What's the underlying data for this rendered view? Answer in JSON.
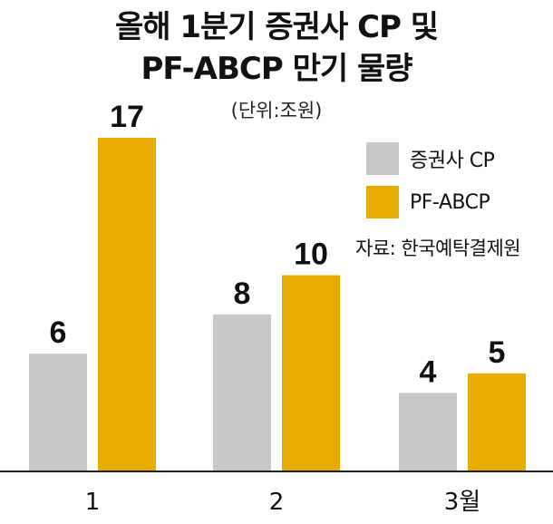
{
  "title_line1": "올해 1분기 증권사 CP 및",
  "title_line2": "PF-ABCP 만기 물량",
  "unit_label": "(단위:조원)",
  "source_label": "자료:  한국예탁결제원",
  "colors": {
    "series1": "#c8c8c8",
    "series2": "#e8ac00",
    "axis": "#222222"
  },
  "chart_data": {
    "type": "bar",
    "categories": [
      "1",
      "2",
      "3월"
    ],
    "series": [
      {
        "name": "증권사 CP",
        "values": [
          6,
          8,
          4
        ],
        "color": "#c8c8c8"
      },
      {
        "name": "PF-ABCP",
        "values": [
          17,
          10,
          5
        ],
        "color": "#e8ac00"
      }
    ],
    "ylim": [
      0,
      17
    ],
    "legend": "top-right",
    "grid": false
  }
}
